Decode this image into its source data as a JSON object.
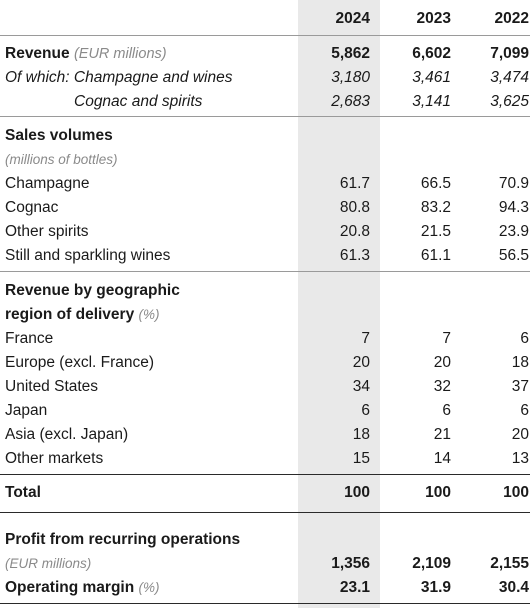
{
  "header": {
    "years": [
      "2024",
      "2023",
      "2022"
    ]
  },
  "revenue": {
    "label": "Revenue",
    "unit": "(EUR millions)",
    "values": [
      "5,862",
      "6,602",
      "7,099"
    ],
    "of_which_label": "Of which: Champagne and wines",
    "of_which_values": [
      "3,180",
      "3,461",
      "3,474"
    ],
    "cognac_label": "Cognac and spirits",
    "cognac_values": [
      "2,683",
      "3,141",
      "3,625"
    ]
  },
  "sales_volumes": {
    "title": "Sales volumes",
    "unit": "(millions of bottles)",
    "rows": [
      {
        "label": "Champagne",
        "values": [
          "61.7",
          "66.5",
          "70.9"
        ]
      },
      {
        "label": "Cognac",
        "values": [
          "80.8",
          "83.2",
          "94.3"
        ]
      },
      {
        "label": "Other spirits",
        "values": [
          "20.8",
          "21.5",
          "23.9"
        ]
      },
      {
        "label": "Still and sparkling wines",
        "values": [
          "61.3",
          "61.1",
          "56.5"
        ]
      }
    ]
  },
  "geo": {
    "title_line1": "Revenue by geographic",
    "title_line2": "region of delivery",
    "unit": "(%)",
    "rows": [
      {
        "label": "France",
        "values": [
          "7",
          "7",
          "6"
        ]
      },
      {
        "label": "Europe (excl. France)",
        "values": [
          "20",
          "20",
          "18"
        ]
      },
      {
        "label": "United States",
        "values": [
          "34",
          "32",
          "37"
        ]
      },
      {
        "label": "Japan",
        "values": [
          "6",
          "6",
          "6"
        ]
      },
      {
        "label": "Asia (excl. Japan)",
        "values": [
          "18",
          "21",
          "20"
        ]
      },
      {
        "label": "Other markets",
        "values": [
          "15",
          "14",
          "13"
        ]
      }
    ],
    "total_label": "Total",
    "total_values": [
      "100",
      "100",
      "100"
    ]
  },
  "profit": {
    "title": "Profit from recurring operations",
    "unit": "(EUR millions)",
    "values": [
      "1,356",
      "2,109",
      "2,155"
    ],
    "margin_label": "Operating margin",
    "margin_unit": "(%)",
    "margin_values": [
      "23.1",
      "31.9",
      "30.4"
    ]
  }
}
